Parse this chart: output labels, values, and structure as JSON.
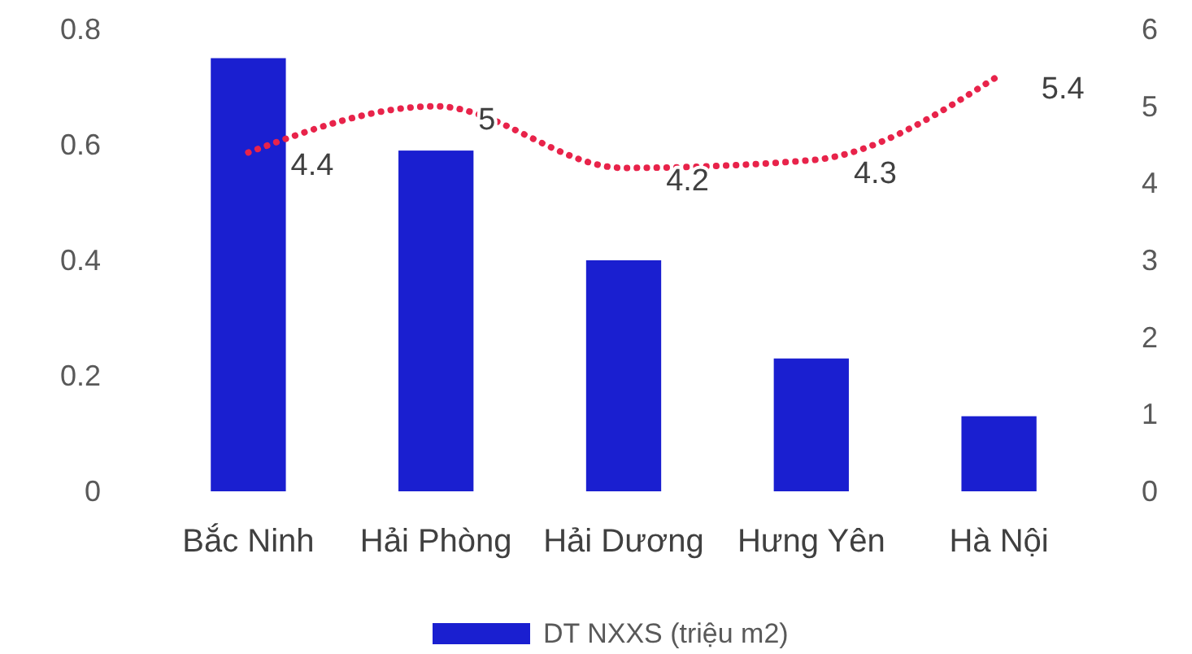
{
  "chart_data": {
    "type": "bar",
    "categories": [
      "Bắc Ninh",
      "Hải Phòng",
      "Hải Dương",
      "Hưng Yên",
      "Hà Nội"
    ],
    "series": [
      {
        "name": "DT NXXS (triệu m2)",
        "color": "#1a1fd0",
        "values": [
          0.75,
          0.59,
          0.4,
          0.23,
          0.13
        ]
      },
      {
        "type": "line",
        "axis": "y2",
        "color": "#e8234a",
        "line_style": "dotted",
        "values": [
          4.4,
          5,
          4.2,
          4.3,
          5.4
        ],
        "value_labels": [
          "4.4",
          "5",
          "4.2",
          "4.3",
          "5.4"
        ]
      }
    ],
    "ylim": [
      0,
      0.8
    ],
    "yticks": [
      0,
      0.2,
      0.4,
      0.6,
      0.8
    ],
    "y2lim": [
      0,
      6
    ],
    "y2ticks": [
      0,
      1,
      2,
      3,
      4,
      5,
      6
    ],
    "grid": false,
    "legend": "bottom"
  }
}
